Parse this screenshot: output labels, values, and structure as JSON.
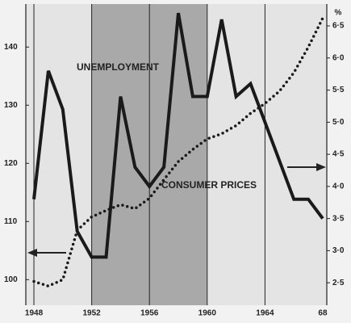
{
  "chart_data": {
    "type": "line",
    "x": [
      1948,
      1949,
      1950,
      1951,
      1952,
      1953,
      1954,
      1955,
      1956,
      1957,
      1958,
      1959,
      1960,
      1961,
      1962,
      1963,
      1964,
      1965,
      1966,
      1967,
      1968
    ],
    "series": [
      {
        "name": "UNEMPLOYMENT",
        "color": "#1a1a1a",
        "axis": "y2",
        "style": "solid",
        "values": [
          3.8,
          5.8,
          5.2,
          3.3,
          2.9,
          2.9,
          5.4,
          4.3,
          4.0,
          4.3,
          6.7,
          5.4,
          5.4,
          6.6,
          5.4,
          5.6,
          5.0,
          4.4,
          3.8,
          3.8,
          3.5
        ]
      },
      {
        "name": "CONSUMER PRICES",
        "color": "#1a1a1a",
        "style": "dotted",
        "values": [
          99.7,
          98.9,
          100,
          108.5,
          110.8,
          111.9,
          112.9,
          112.2,
          114,
          117.2,
          120.3,
          122.4,
          124.2,
          125.1,
          126.5,
          128.6,
          130.3,
          132.4,
          135.6,
          140,
          145
        ]
      }
    ],
    "xlim": [
      1947.44,
      1968.28
    ],
    "xticks": [
      1948,
      1952,
      1956,
      1960,
      1964,
      {
        "value": 1968,
        "label": "68"
      }
    ],
    "ylim": [
      95.6,
      147.4
    ],
    "yticks": [
      100,
      110,
      120,
      130,
      140
    ],
    "y2lim": [
      2.15,
      6.84
    ],
    "y2ticks": [
      {
        "value": 2.5,
        "label": "2·5"
      },
      {
        "value": 3.0,
        "label": "3·0"
      },
      {
        "value": 3.5,
        "label": "3·5"
      },
      {
        "value": 4.0,
        "label": "4·0"
      },
      {
        "value": 4.5,
        "label": "4·5"
      },
      {
        "value": 5.0,
        "label": "5·0"
      },
      {
        "value": 5.5,
        "label": "5·5"
      },
      {
        "value": 6.0,
        "label": "6·0"
      },
      {
        "value": 6.5,
        "label": "6·5"
      }
    ],
    "y2_unit": "%",
    "shade": [
      1952,
      1960
    ]
  }
}
